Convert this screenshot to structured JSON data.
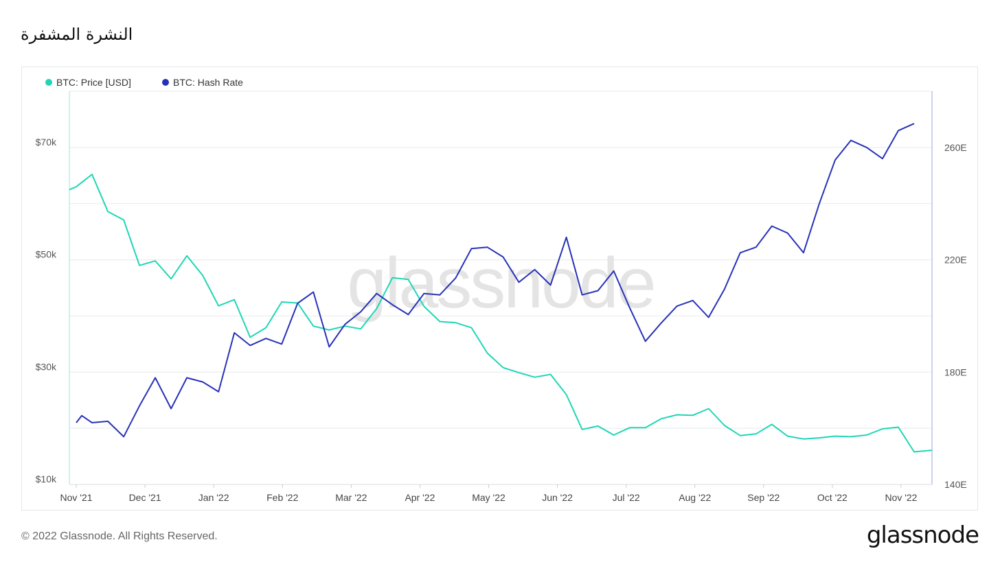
{
  "page_title": "النشرة المشفرة",
  "footer": {
    "copyright": "© 2022 Glassnode. All Rights Reserved.",
    "logo_text": "glassnode"
  },
  "watermark": "glassnode",
  "colors": {
    "price": "#1ed6b6",
    "hash_rate": "#2731b8",
    "grid": "#e6e9ec",
    "axis_text": "#555555"
  },
  "chart_data": {
    "type": "line",
    "legend": [
      {
        "name": "BTC: Price [USD]",
        "color": "#1ed6b6"
      },
      {
        "name": "BTC: Hash Rate",
        "color": "#2731b8"
      }
    ],
    "legend_position": "top-left",
    "grid": true,
    "x_tick_labels": [
      "Nov '21",
      "Dec '21",
      "Jan '22",
      "Feb '22",
      "Mar '22",
      "Apr '22",
      "May '22",
      "Jun '22",
      "Jul '22",
      "Aug '22",
      "Sep '22",
      "Oct '22",
      "Nov '22"
    ],
    "x_range_months": [
      -0.1,
      12.45
    ],
    "y_left": {
      "ticks": [
        "$10k",
        "$30k",
        "$50k",
        "$70k"
      ],
      "tick_values": [
        10000,
        30000,
        50000,
        70000
      ],
      "range": [
        10000,
        80000
      ]
    },
    "y_right": {
      "ticks": [
        "140E",
        "180E",
        "220E",
        "260E"
      ],
      "tick_values": [
        140,
        180,
        220,
        260
      ],
      "range": [
        140,
        280
      ]
    },
    "series": [
      {
        "name": "BTC: Price [USD]",
        "axis": "left",
        "x": [
          -0.1,
          0.0,
          0.23,
          0.46,
          0.69,
          0.92,
          1.15,
          1.38,
          1.61,
          1.84,
          2.07,
          2.3,
          2.53,
          2.76,
          2.99,
          3.22,
          3.45,
          3.68,
          3.91,
          4.14,
          4.37,
          4.6,
          4.83,
          5.06,
          5.29,
          5.52,
          5.75,
          5.98,
          6.21,
          6.44,
          6.67,
          6.9,
          7.13,
          7.36,
          7.59,
          7.82,
          8.05,
          8.28,
          8.51,
          8.74,
          8.97,
          9.2,
          9.43,
          9.66,
          9.89,
          10.12,
          10.35,
          10.58,
          10.81,
          11.04,
          11.27,
          11.5,
          11.73,
          11.96,
          12.19,
          12.45
        ],
        "values": [
          62500,
          63000,
          65200,
          58600,
          57100,
          49000,
          49800,
          46600,
          50700,
          47200,
          41800,
          42900,
          36200,
          37900,
          42500,
          42300,
          38200,
          37500,
          38200,
          37700,
          41300,
          46800,
          46500,
          41700,
          39000,
          38800,
          37900,
          33400,
          30800,
          29900,
          29100,
          29600,
          26000,
          19800,
          20400,
          18800,
          20100,
          20100,
          21700,
          22400,
          22300,
          23500,
          20500,
          18700,
          19000,
          20700,
          18600,
          18100,
          18300,
          18600,
          18500,
          18800,
          19900,
          20200,
          15800,
          16100
        ]
      },
      {
        "name": "BTC: Hash Rate",
        "axis": "right",
        "x": [
          0.0,
          0.08,
          0.23,
          0.46,
          0.69,
          0.92,
          1.15,
          1.38,
          1.61,
          1.84,
          2.07,
          2.3,
          2.53,
          2.76,
          2.99,
          3.22,
          3.45,
          3.68,
          3.91,
          4.14,
          4.37,
          4.6,
          4.83,
          5.06,
          5.29,
          5.52,
          5.75,
          5.98,
          6.21,
          6.44,
          6.67,
          6.9,
          7.13,
          7.36,
          7.59,
          7.82,
          8.05,
          8.28,
          8.51,
          8.74,
          8.97,
          9.2,
          9.43,
          9.66,
          9.89,
          10.12,
          10.35,
          10.58,
          10.81,
          11.04,
          11.27,
          11.5,
          11.73,
          11.96,
          12.19
        ],
        "values": [
          162,
          164.5,
          162,
          162.5,
          157,
          168,
          178,
          167,
          178,
          176.5,
          173,
          194,
          189.5,
          192,
          190,
          204.5,
          208.5,
          189,
          197,
          201.5,
          208,
          204,
          200.5,
          208,
          207.5,
          213.5,
          224,
          224.5,
          221,
          212,
          216.5,
          211,
          228,
          207.5,
          209,
          216,
          203,
          191,
          197.5,
          203.5,
          205.5,
          199.5,
          209.5,
          222.5,
          224.5,
          232,
          229.5,
          222.5,
          240,
          255.5,
          262.5,
          260,
          256,
          266,
          268.5
        ]
      }
    ]
  }
}
